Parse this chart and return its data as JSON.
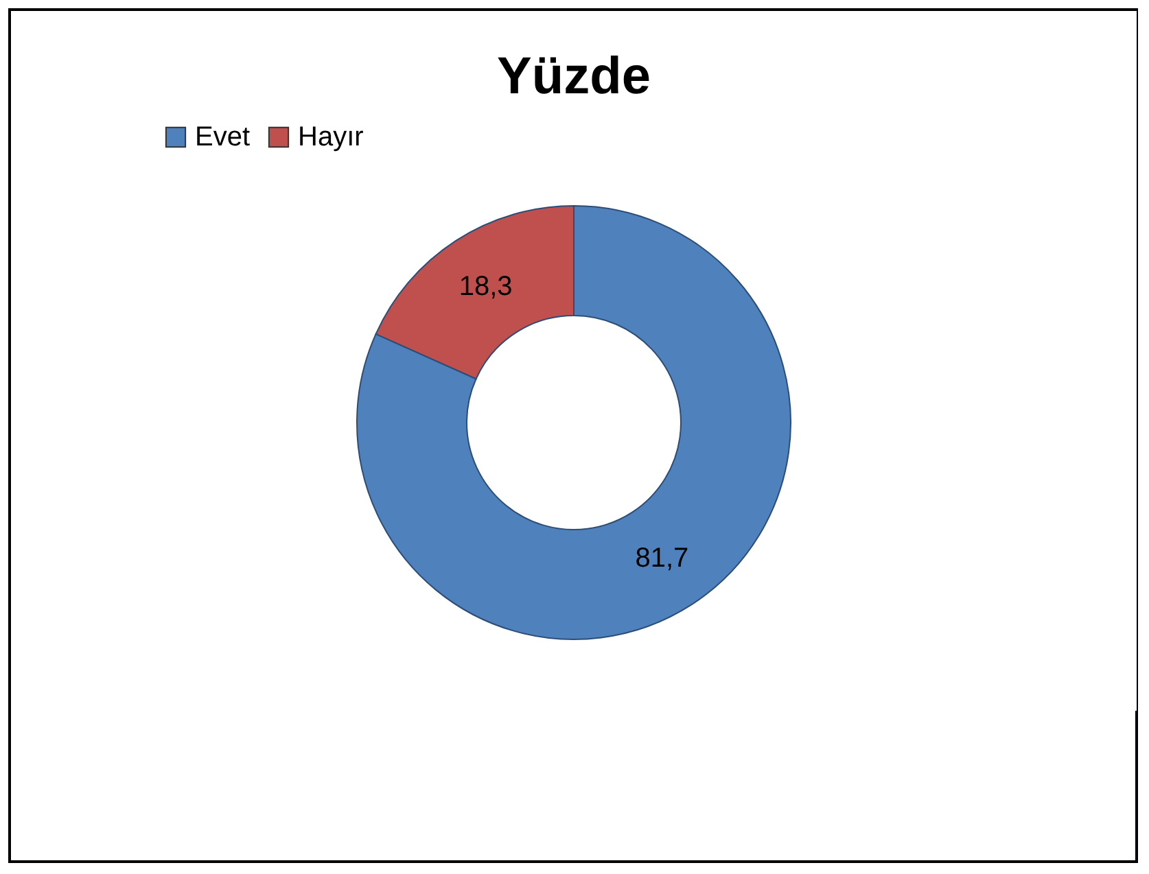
{
  "chart_data": {
    "type": "donut",
    "title": "Yüzde",
    "categories": [
      "Evet",
      "Hayır"
    ],
    "values": [
      81.7,
      18.3
    ],
    "colors": [
      "#4f81bd",
      "#c0504d"
    ],
    "value_labels": [
      "81,7",
      "18,3"
    ],
    "legend": "top"
  }
}
